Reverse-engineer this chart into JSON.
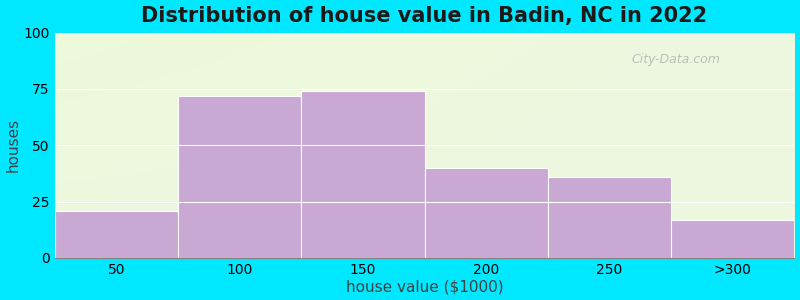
{
  "title": "Distribution of house value in Badin, NC in 2022",
  "xlabel": "house value ($1000)",
  "ylabel": "houses",
  "xtick_labels": [
    "50",
    "100",
    "150",
    "200",
    "250",
    ">300"
  ],
  "values": [
    21,
    72,
    74,
    40,
    36,
    17
  ],
  "bar_color": "#c9a8d4",
  "ylim": [
    0,
    100
  ],
  "yticks": [
    0,
    25,
    50,
    75,
    100
  ],
  "background_outer": "#00e8ff",
  "grid_color": "#ffffff",
  "title_fontsize": 15,
  "axis_label_fontsize": 11,
  "tick_fontsize": 10,
  "watermark": "City-Data.com"
}
